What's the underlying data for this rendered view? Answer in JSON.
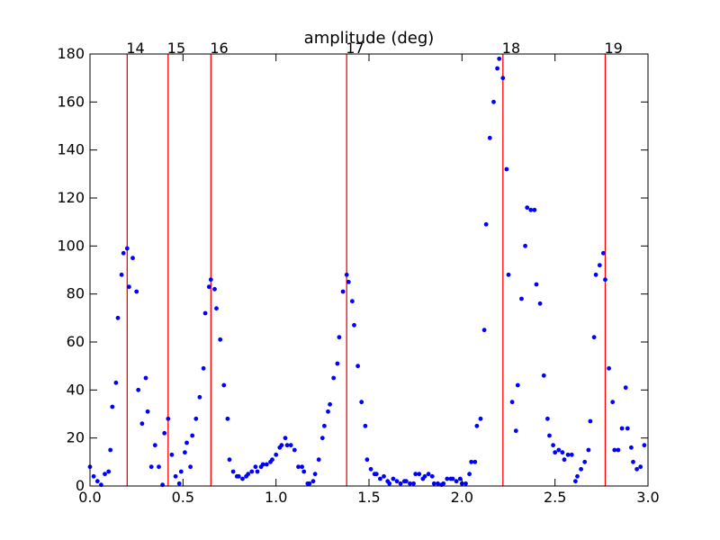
{
  "chart_data": {
    "type": "scatter",
    "title": "amplitude (deg)",
    "xlim": [
      0.0,
      3.0
    ],
    "ylim": [
      0,
      180
    ],
    "x_ticks": [
      "0.0",
      "0.5",
      "1.0",
      "1.5",
      "2.0",
      "2.5",
      "3.0"
    ],
    "y_ticks": [
      "0",
      "20",
      "40",
      "60",
      "80",
      "100",
      "120",
      "140",
      "160",
      "180"
    ],
    "grid": false,
    "marker_color": "#0000ff",
    "line_color": "#ff0000",
    "vertical_lines": [
      {
        "x": 0.2,
        "label": "14"
      },
      {
        "x": 0.42,
        "label": "15"
      },
      {
        "x": 0.65,
        "label": "16"
      },
      {
        "x": 1.38,
        "label": "17"
      },
      {
        "x": 2.22,
        "label": "18"
      },
      {
        "x": 2.77,
        "label": "19"
      }
    ],
    "series": [
      {
        "points": [
          [
            0.0,
            8
          ],
          [
            0.02,
            4
          ],
          [
            0.04,
            2
          ],
          [
            0.06,
            0.5
          ],
          [
            0.08,
            5
          ],
          [
            0.1,
            6
          ],
          [
            0.11,
            15
          ],
          [
            0.12,
            33
          ],
          [
            0.14,
            43
          ],
          [
            0.15,
            70
          ],
          [
            0.17,
            88
          ],
          [
            0.18,
            97
          ],
          [
            0.2,
            99
          ],
          [
            0.21,
            83
          ],
          [
            0.23,
            95
          ],
          [
            0.25,
            81
          ],
          [
            0.26,
            40
          ],
          [
            0.28,
            26
          ],
          [
            0.3,
            45
          ],
          [
            0.31,
            31
          ],
          [
            0.33,
            8
          ],
          [
            0.35,
            17
          ],
          [
            0.37,
            8
          ],
          [
            0.39,
            0.5
          ],
          [
            0.4,
            22
          ],
          [
            0.42,
            28
          ],
          [
            0.44,
            13
          ],
          [
            0.46,
            4
          ],
          [
            0.48,
            1
          ],
          [
            0.49,
            6
          ],
          [
            0.51,
            14
          ],
          [
            0.52,
            18
          ],
          [
            0.54,
            8
          ],
          [
            0.55,
            21
          ],
          [
            0.57,
            28
          ],
          [
            0.59,
            37
          ],
          [
            0.61,
            49
          ],
          [
            0.62,
            72
          ],
          [
            0.64,
            83
          ],
          [
            0.65,
            86
          ],
          [
            0.67,
            82
          ],
          [
            0.68,
            74
          ],
          [
            0.7,
            61
          ],
          [
            0.72,
            42
          ],
          [
            0.74,
            28
          ],
          [
            0.75,
            11
          ],
          [
            0.77,
            6
          ],
          [
            0.79,
            4
          ],
          [
            0.8,
            4
          ],
          [
            0.82,
            3
          ],
          [
            0.84,
            4
          ],
          [
            0.85,
            5
          ],
          [
            0.87,
            6
          ],
          [
            0.89,
            8
          ],
          [
            0.9,
            6
          ],
          [
            0.92,
            8
          ],
          [
            0.93,
            9
          ],
          [
            0.95,
            9
          ],
          [
            0.97,
            10
          ],
          [
            0.98,
            11
          ],
          [
            1.0,
            13
          ],
          [
            1.02,
            16
          ],
          [
            1.03,
            17
          ],
          [
            1.05,
            20
          ],
          [
            1.06,
            17
          ],
          [
            1.08,
            17
          ],
          [
            1.1,
            15
          ],
          [
            1.12,
            8
          ],
          [
            1.14,
            8
          ],
          [
            1.15,
            6
          ],
          [
            1.17,
            1
          ],
          [
            1.18,
            1
          ],
          [
            1.2,
            2
          ],
          [
            1.21,
            5
          ],
          [
            1.23,
            11
          ],
          [
            1.25,
            20
          ],
          [
            1.26,
            25
          ],
          [
            1.28,
            31
          ],
          [
            1.29,
            34
          ],
          [
            1.31,
            45
          ],
          [
            1.33,
            51
          ],
          [
            1.34,
            62
          ],
          [
            1.36,
            81
          ],
          [
            1.38,
            88
          ],
          [
            1.39,
            85
          ],
          [
            1.41,
            77
          ],
          [
            1.42,
            67
          ],
          [
            1.44,
            50
          ],
          [
            1.46,
            35
          ],
          [
            1.48,
            25
          ],
          [
            1.49,
            11
          ],
          [
            1.51,
            7
          ],
          [
            1.53,
            5
          ],
          [
            1.54,
            5
          ],
          [
            1.56,
            3
          ],
          [
            1.58,
            4
          ],
          [
            1.6,
            2
          ],
          [
            1.61,
            1
          ],
          [
            1.63,
            3
          ],
          [
            1.65,
            2
          ],
          [
            1.67,
            1
          ],
          [
            1.69,
            2
          ],
          [
            1.7,
            2
          ],
          [
            1.72,
            1
          ],
          [
            1.74,
            1
          ],
          [
            1.75,
            5
          ],
          [
            1.77,
            5
          ],
          [
            1.79,
            3
          ],
          [
            1.8,
            4
          ],
          [
            1.82,
            5
          ],
          [
            1.84,
            4
          ],
          [
            1.85,
            1
          ],
          [
            1.87,
            1
          ],
          [
            1.89,
            0.5
          ],
          [
            1.9,
            1
          ],
          [
            1.92,
            3
          ],
          [
            1.94,
            3
          ],
          [
            1.95,
            3
          ],
          [
            1.97,
            2
          ],
          [
            1.99,
            3
          ],
          [
            2.0,
            1
          ],
          [
            2.02,
            1
          ],
          [
            2.04,
            5
          ],
          [
            2.05,
            10
          ],
          [
            2.07,
            10
          ],
          [
            2.08,
            25
          ],
          [
            2.1,
            28
          ],
          [
            2.12,
            65
          ],
          [
            2.13,
            109
          ],
          [
            2.15,
            145
          ],
          [
            2.17,
            160
          ],
          [
            2.19,
            174
          ],
          [
            2.2,
            178
          ],
          [
            2.22,
            170
          ],
          [
            2.24,
            132
          ],
          [
            2.25,
            88
          ],
          [
            2.27,
            35
          ],
          [
            2.29,
            23
          ],
          [
            2.3,
            42
          ],
          [
            2.32,
            78
          ],
          [
            2.34,
            100
          ],
          [
            2.35,
            116
          ],
          [
            2.37,
            115
          ],
          [
            2.39,
            115
          ],
          [
            2.4,
            84
          ],
          [
            2.42,
            76
          ],
          [
            2.44,
            46
          ],
          [
            2.46,
            28
          ],
          [
            2.47,
            21
          ],
          [
            2.49,
            17
          ],
          [
            2.5,
            14
          ],
          [
            2.52,
            15
          ],
          [
            2.54,
            14
          ],
          [
            2.55,
            11
          ],
          [
            2.57,
            13
          ],
          [
            2.59,
            13
          ],
          [
            2.61,
            2
          ],
          [
            2.62,
            4
          ],
          [
            2.64,
            7
          ],
          [
            2.66,
            10
          ],
          [
            2.68,
            15
          ],
          [
            2.69,
            27
          ],
          [
            2.71,
            62
          ],
          [
            2.72,
            88
          ],
          [
            2.74,
            92
          ],
          [
            2.76,
            97
          ],
          [
            2.77,
            86
          ],
          [
            2.79,
            49
          ],
          [
            2.81,
            35
          ],
          [
            2.82,
            15
          ],
          [
            2.84,
            15
          ],
          [
            2.86,
            24
          ],
          [
            2.88,
            41
          ],
          [
            2.89,
            24
          ],
          [
            2.91,
            16
          ],
          [
            2.92,
            10
          ],
          [
            2.94,
            7
          ],
          [
            2.96,
            8
          ],
          [
            2.98,
            17
          ]
        ]
      }
    ]
  }
}
